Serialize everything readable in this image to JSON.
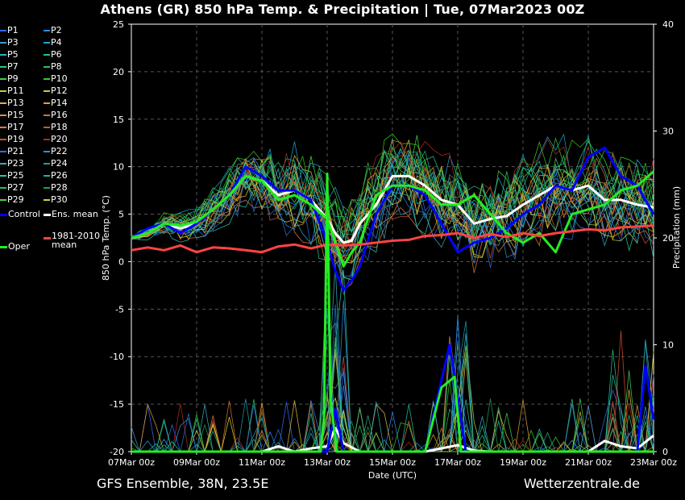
{
  "title": "Athens  (GR)  850 hPa Temp. & Precipitation | Tue, 07Mar2023 00Z",
  "footer": {
    "left": "GFS Ensemble, 38N, 23.5E",
    "right": "Wetterzentrale.de"
  },
  "legend": [
    {
      "label": "P1",
      "color": "#2f6cff"
    },
    {
      "label": "P2",
      "color": "#2a8cff"
    },
    {
      "label": "P3",
      "color": "#3a9ad6"
    },
    {
      "label": "P4",
      "color": "#1aa7d0"
    },
    {
      "label": "P5",
      "color": "#25b4c8"
    },
    {
      "label": "P6",
      "color": "#1fc0a0"
    },
    {
      "label": "P7",
      "color": "#26c88a"
    },
    {
      "label": "P8",
      "color": "#29c070"
    },
    {
      "label": "P9",
      "color": "#3fd04a"
    },
    {
      "label": "P10",
      "color": "#38c826"
    },
    {
      "label": "P11",
      "color": "#b9d23a"
    },
    {
      "label": "P12",
      "color": "#d7c23a"
    },
    {
      "label": "P13",
      "color": "#e0b830"
    },
    {
      "label": "P14",
      "color": "#e0a030"
    },
    {
      "label": "P15",
      "color": "#e09040"
    },
    {
      "label": "P16",
      "color": "#c87a30"
    },
    {
      "label": "P17",
      "color": "#e07a40"
    },
    {
      "label": "P18",
      "color": "#c85a2a"
    },
    {
      "label": "P19",
      "color": "#d0502a"
    },
    {
      "label": "P20",
      "color": "#b02a1a"
    },
    {
      "label": "P21",
      "color": "#2a70e0"
    },
    {
      "label": "P22",
      "color": "#2a90e0"
    },
    {
      "label": "P23",
      "color": "#35a8c8"
    },
    {
      "label": "P24",
      "color": "#1f9aaa"
    },
    {
      "label": "P25",
      "color": "#25c8a8"
    },
    {
      "label": "P26",
      "color": "#1fb490"
    },
    {
      "label": "P27",
      "color": "#25b87a"
    },
    {
      "label": "P28",
      "color": "#1fa058"
    },
    {
      "label": "P29",
      "color": "#4cd83a"
    },
    {
      "label": "P30",
      "color": "#d8d030"
    },
    {
      "label": "Control",
      "color": "#0000ff",
      "thick": true
    },
    {
      "label": "Ens. mean",
      "color": "#ffffff",
      "thick": true
    },
    {
      "label": "Oper",
      "color": "#22ee22",
      "thick": true
    },
    {
      "label": "1981-2010 mean",
      "color": "#ff4444",
      "thick": true
    }
  ],
  "chart_data": {
    "type": "line",
    "title": "Athens  (GR)  850 hPa Temp. & Precipitation | Tue, 07Mar2023 00Z",
    "xlabel": "Date (UTC)",
    "ylabel": "850 hPa Temp. (°C)",
    "y2label": "Precipitation (mm)",
    "x_ticks": [
      "07Mar 00z",
      "09Mar 00z",
      "11Mar 00z",
      "13Mar 00z",
      "15Mar 00z",
      "17Mar 00z",
      "19Mar 00z",
      "21Mar 00z",
      "23Mar 00z"
    ],
    "x_days": [
      0,
      2,
      4,
      6,
      8,
      10,
      12,
      14,
      16
    ],
    "ylim": [
      -20,
      25
    ],
    "y_ticks": [
      25,
      20,
      15,
      10,
      5,
      0,
      -5,
      -10,
      -15,
      -20
    ],
    "y2lim": [
      0,
      40
    ],
    "y2_ticks": [
      40,
      30,
      20,
      10,
      0
    ],
    "grid": true,
    "series": [
      {
        "name": "Ens. mean",
        "color": "#ffffff",
        "x": [
          0,
          0.5,
          1,
          1.5,
          2,
          2.5,
          3,
          3.5,
          4,
          4.5,
          5,
          5.5,
          6,
          6.25,
          6.5,
          6.75,
          7,
          7.5,
          8,
          8.5,
          9,
          9.5,
          10,
          10.5,
          11,
          11.5,
          12,
          12.5,
          13,
          13.5,
          14,
          14.5,
          15,
          15.5,
          16
        ],
        "y": [
          2.5,
          3,
          4,
          3.5,
          4,
          5.5,
          7,
          9,
          8.5,
          7,
          7.5,
          6.5,
          4.5,
          3,
          2,
          2.2,
          4,
          6,
          9,
          9,
          8,
          6.5,
          6,
          4,
          4.5,
          4.8,
          6,
          7,
          8,
          7.5,
          8,
          6.5,
          6.5,
          6,
          5.7
        ]
      },
      {
        "name": "Control",
        "color": "#0000ff",
        "x": [
          0,
          0.5,
          1,
          1.5,
          2,
          2.5,
          3,
          3.5,
          4,
          4.5,
          5,
          5.5,
          6,
          6.25,
          6.5,
          6.75,
          7,
          7.5,
          8,
          8.5,
          9,
          9.5,
          10,
          10.5,
          11,
          11.5,
          12,
          12.5,
          13,
          13.5,
          14,
          14.5,
          15,
          15.5,
          16
        ],
        "y": [
          2.5,
          3.5,
          4,
          3,
          4,
          5.5,
          7,
          10,
          9,
          7.5,
          7.5,
          6.5,
          2,
          -1,
          -3,
          -2,
          -0.5,
          5,
          8,
          8,
          7,
          4,
          1,
          2,
          2.5,
          3.5,
          5,
          6,
          8,
          7.5,
          11,
          12,
          9,
          8,
          5
        ]
      },
      {
        "name": "Oper",
        "color": "#22ee22",
        "x": [
          0,
          0.5,
          1,
          1.5,
          2,
          2.5,
          3,
          3.5,
          4,
          4.5,
          5,
          5.5,
          6,
          6.25,
          6.5,
          6.75,
          7,
          7.5,
          8,
          8.5,
          9,
          9.5,
          10,
          10.5,
          11,
          11.5,
          12,
          12.5,
          13,
          13.5,
          14,
          14.5,
          15,
          15.5,
          16
        ],
        "y": [
          2.5,
          3,
          4,
          3.8,
          4.2,
          5.5,
          7,
          9,
          8.5,
          6.5,
          7,
          6,
          4.5,
          2,
          -0.5,
          1,
          2,
          7,
          8,
          8,
          7.5,
          6,
          6,
          7,
          5,
          3,
          2,
          3,
          1,
          5,
          5.5,
          6,
          7.5,
          8,
          9.5
        ]
      },
      {
        "name": "1981-2010 mean",
        "color": "#ff4444",
        "x": [
          0,
          0.5,
          1,
          1.5,
          2,
          2.5,
          3,
          3.5,
          4,
          4.5,
          5,
          5.5,
          6,
          6.5,
          7,
          7.5,
          8,
          8.5,
          9,
          9.5,
          10,
          10.5,
          11,
          11.5,
          12,
          12.5,
          13,
          13.5,
          14,
          14.5,
          15,
          15.5,
          16
        ],
        "y": [
          1.2,
          1.5,
          1.2,
          1.7,
          1,
          1.5,
          1.4,
          1.2,
          1,
          1.6,
          1.8,
          1.4,
          1.8,
          1.7,
          1.8,
          2,
          2.2,
          2.3,
          2.7,
          2.8,
          3,
          2.5,
          2.9,
          2.6,
          3,
          2.7,
          3,
          3.2,
          3.4,
          3.3,
          3.6,
          3.7,
          3.8
        ]
      }
    ],
    "precipitation_mm": [
      {
        "name": "Ens. mean",
        "color": "#ffffff",
        "x": [
          0,
          4,
          4.5,
          5,
          5.5,
          6,
          6.25,
          6.5,
          7,
          8,
          9,
          9.5,
          10,
          10.5,
          11,
          12,
          13,
          14,
          14.5,
          15,
          15.5,
          16
        ],
        "y": [
          0,
          0,
          0.5,
          0,
          0.3,
          0.5,
          2.2,
          0.8,
          0,
          0,
          0,
          0.3,
          0.6,
          0.1,
          0,
          0,
          0,
          0,
          1,
          0.5,
          0.3,
          1.5
        ]
      },
      {
        "name": "Control",
        "color": "#0000ff",
        "x": [
          0,
          6,
          6.25,
          6.5,
          9,
          9.75,
          10,
          10.25,
          10.5,
          15,
          15.5,
          15.75,
          16
        ],
        "y": [
          0,
          0,
          4,
          0,
          0,
          10,
          5,
          0,
          0,
          0,
          0,
          8,
          3
        ]
      },
      {
        "name": "Oper",
        "color": "#22ee22",
        "x": [
          0,
          5.8,
          5.9,
          6.0,
          6.1,
          6.3,
          6.5,
          9,
          9.5,
          9.9,
          10.1,
          10.3,
          16
        ],
        "y": [
          0,
          0,
          3,
          26,
          5,
          0,
          0,
          0,
          6,
          7,
          0,
          0,
          0
        ]
      }
    ]
  }
}
